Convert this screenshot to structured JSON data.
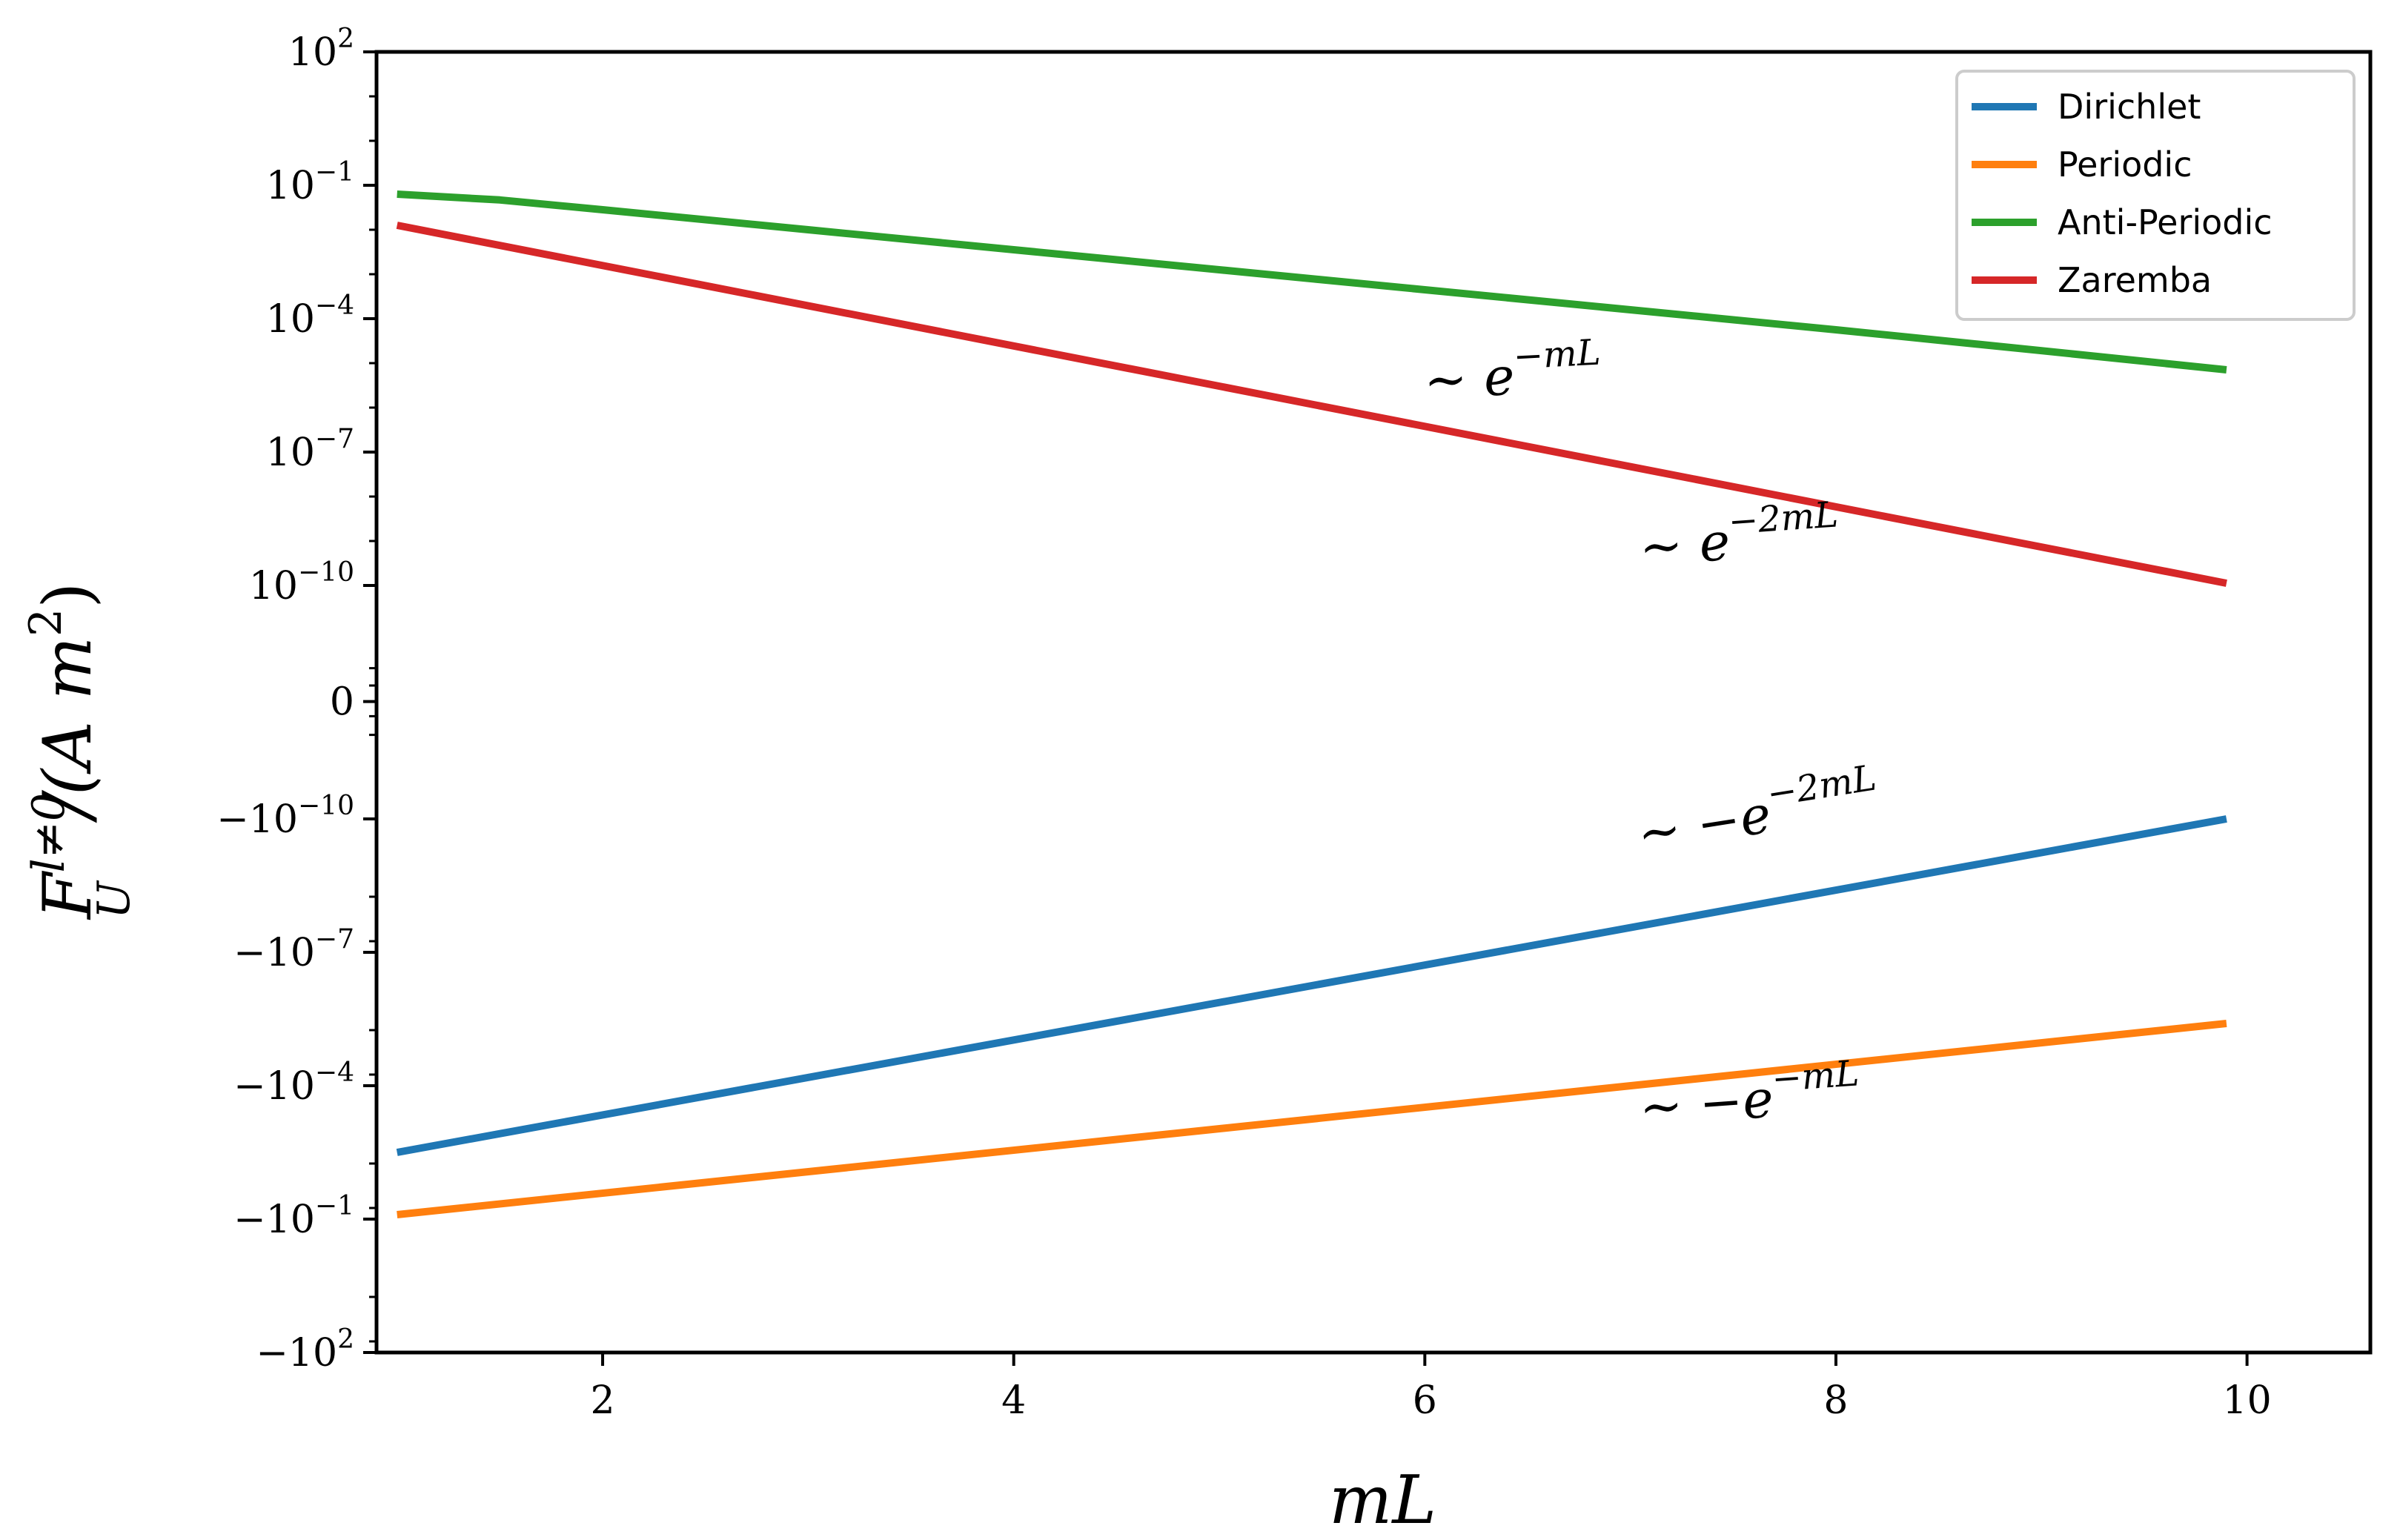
{
  "chart_data": {
    "type": "line",
    "xlabel": "mL",
    "ylabel": {
      "base": "F",
      "sub": "U",
      "sup": "l≠0",
      "rest": "/(A m",
      "rest_sup": "2",
      "close": ")"
    },
    "xlim": [
      0.9,
      10.6
    ],
    "x_ticks": [
      2,
      4,
      6,
      8,
      10
    ],
    "y_scale": "symlog (decade index)",
    "y_ticks": [
      {
        "index": 1,
        "mantissa": "10",
        "exp": "2"
      },
      {
        "index": 0,
        "mantissa": "10",
        "exp": "−1"
      },
      {
        "index": -1,
        "mantissa": "10",
        "exp": "−4"
      },
      {
        "index": -2,
        "mantissa": "10",
        "exp": "−7"
      },
      {
        "index": -3,
        "mantissa": "10",
        "exp": "−10"
      },
      {
        "index": -3.87,
        "mantissa": "0",
        "exp": ""
      },
      {
        "index": -4.75,
        "mantissa": "−10",
        "exp": "−10"
      },
      {
        "index": -5.75,
        "mantissa": "−10",
        "exp": "−7"
      },
      {
        "index": -6.75,
        "mantissa": "−10",
        "exp": "−4"
      },
      {
        "index": -7.75,
        "mantissa": "−10",
        "exp": "−1"
      },
      {
        "index": -8.75,
        "mantissa": "−10",
        "exp": "2"
      }
    ],
    "series": [
      {
        "name": "Dirichlet",
        "color": "#1f77b4",
        "x": [
          1.0,
          9.9
        ],
        "log10_abs_y": [
          -2.5,
          -10.0
        ],
        "sign": -1,
        "label_values": [
          -0.0032,
          -1e-10
        ]
      },
      {
        "name": "Periodic",
        "color": "#ff7f0e",
        "x": [
          1.0,
          9.9
        ],
        "log10_abs_y": [
          -1.1,
          -5.4
        ],
        "sign": -1,
        "label_values": [
          -0.08,
          -4e-06
        ]
      },
      {
        "name": "Anti-Periodic",
        "color": "#2ca02c",
        "x": [
          1.0,
          1.5,
          2.0,
          3.0,
          4.0,
          5.0,
          6.0,
          7.0,
          8.0,
          9.0,
          9.9
        ],
        "log10_abs_y": [
          -1.2,
          -1.33,
          -1.55,
          -2.0,
          -2.45,
          -2.9,
          -3.35,
          -3.8,
          -4.25,
          -4.72,
          -5.15
        ],
        "sign": 1,
        "label_values": [
          0.063,
          7.1e-06
        ]
      },
      {
        "name": "Zaremba",
        "color": "#d62728",
        "x": [
          1.0,
          9.9
        ],
        "log10_abs_y": [
          -1.9,
          -9.95
        ],
        "sign": 1,
        "label_values": [
          0.013,
          1.1e-10
        ]
      }
    ],
    "annotations": [
      {
        "prefix": "∼ ",
        "base": "e",
        "sup": "−mL",
        "near": "Anti-Periodic",
        "x": 6.0,
        "y_index": -1.6
      },
      {
        "prefix": "∼ ",
        "base": "e",
        "sup": "−2mL",
        "near": "Zaremba",
        "x": 7.05,
        "y_index": -2.85
      },
      {
        "prefix": "∼ −",
        "base": "e",
        "sup": "−2mL",
        "near": "Dirichlet",
        "x": 7.05,
        "y_index": -5.0
      },
      {
        "prefix": "∼ −",
        "base": "e",
        "sup": "−mL",
        "near": "Periodic",
        "x": 7.05,
        "y_index": -7.05
      }
    ],
    "legend": {
      "placement": "top-right",
      "entries": [
        "Dirichlet",
        "Periodic",
        "Anti-Periodic",
        "Zaremba"
      ]
    },
    "grid": false
  }
}
